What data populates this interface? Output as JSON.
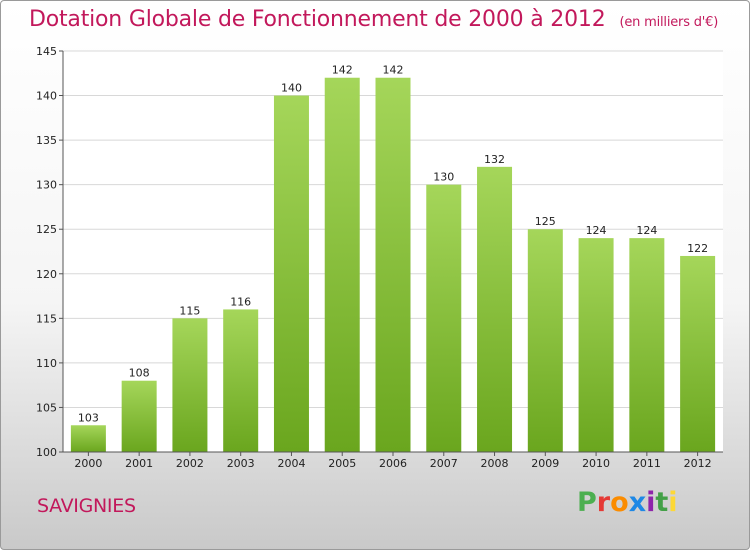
{
  "header": {
    "title": "Dotation Globale de Fonctionnement de 2000 à 2012",
    "unit": "(en milliers d'€)"
  },
  "footer": {
    "place": "SAVIGNIES",
    "logo_letters": [
      "P",
      "r",
      "o",
      "x",
      "i",
      "t",
      "i"
    ],
    "logo_colors": [
      "#4caf50",
      "#e53935",
      "#fb8c00",
      "#1e88e5",
      "#8e24aa",
      "#43a047",
      "#fdd835"
    ]
  },
  "colors": {
    "title": "#c2185b",
    "bar_light": "#a5d65a",
    "bar_dark": "#6aa61e",
    "grid": "#d8d8d8",
    "axis": "#555555"
  },
  "chart_data": {
    "type": "bar",
    "categories": [
      "2000",
      "2001",
      "2002",
      "2003",
      "2004",
      "2005",
      "2006",
      "2007",
      "2008",
      "2009",
      "2010",
      "2011",
      "2012"
    ],
    "values": [
      103,
      108,
      115,
      116,
      140,
      142,
      142,
      130,
      132,
      125,
      124,
      124,
      122
    ],
    "ylim": [
      100,
      145
    ],
    "yticks": [
      100,
      105,
      110,
      115,
      120,
      125,
      130,
      135,
      140,
      145
    ],
    "grid": true,
    "data_labels": true
  }
}
